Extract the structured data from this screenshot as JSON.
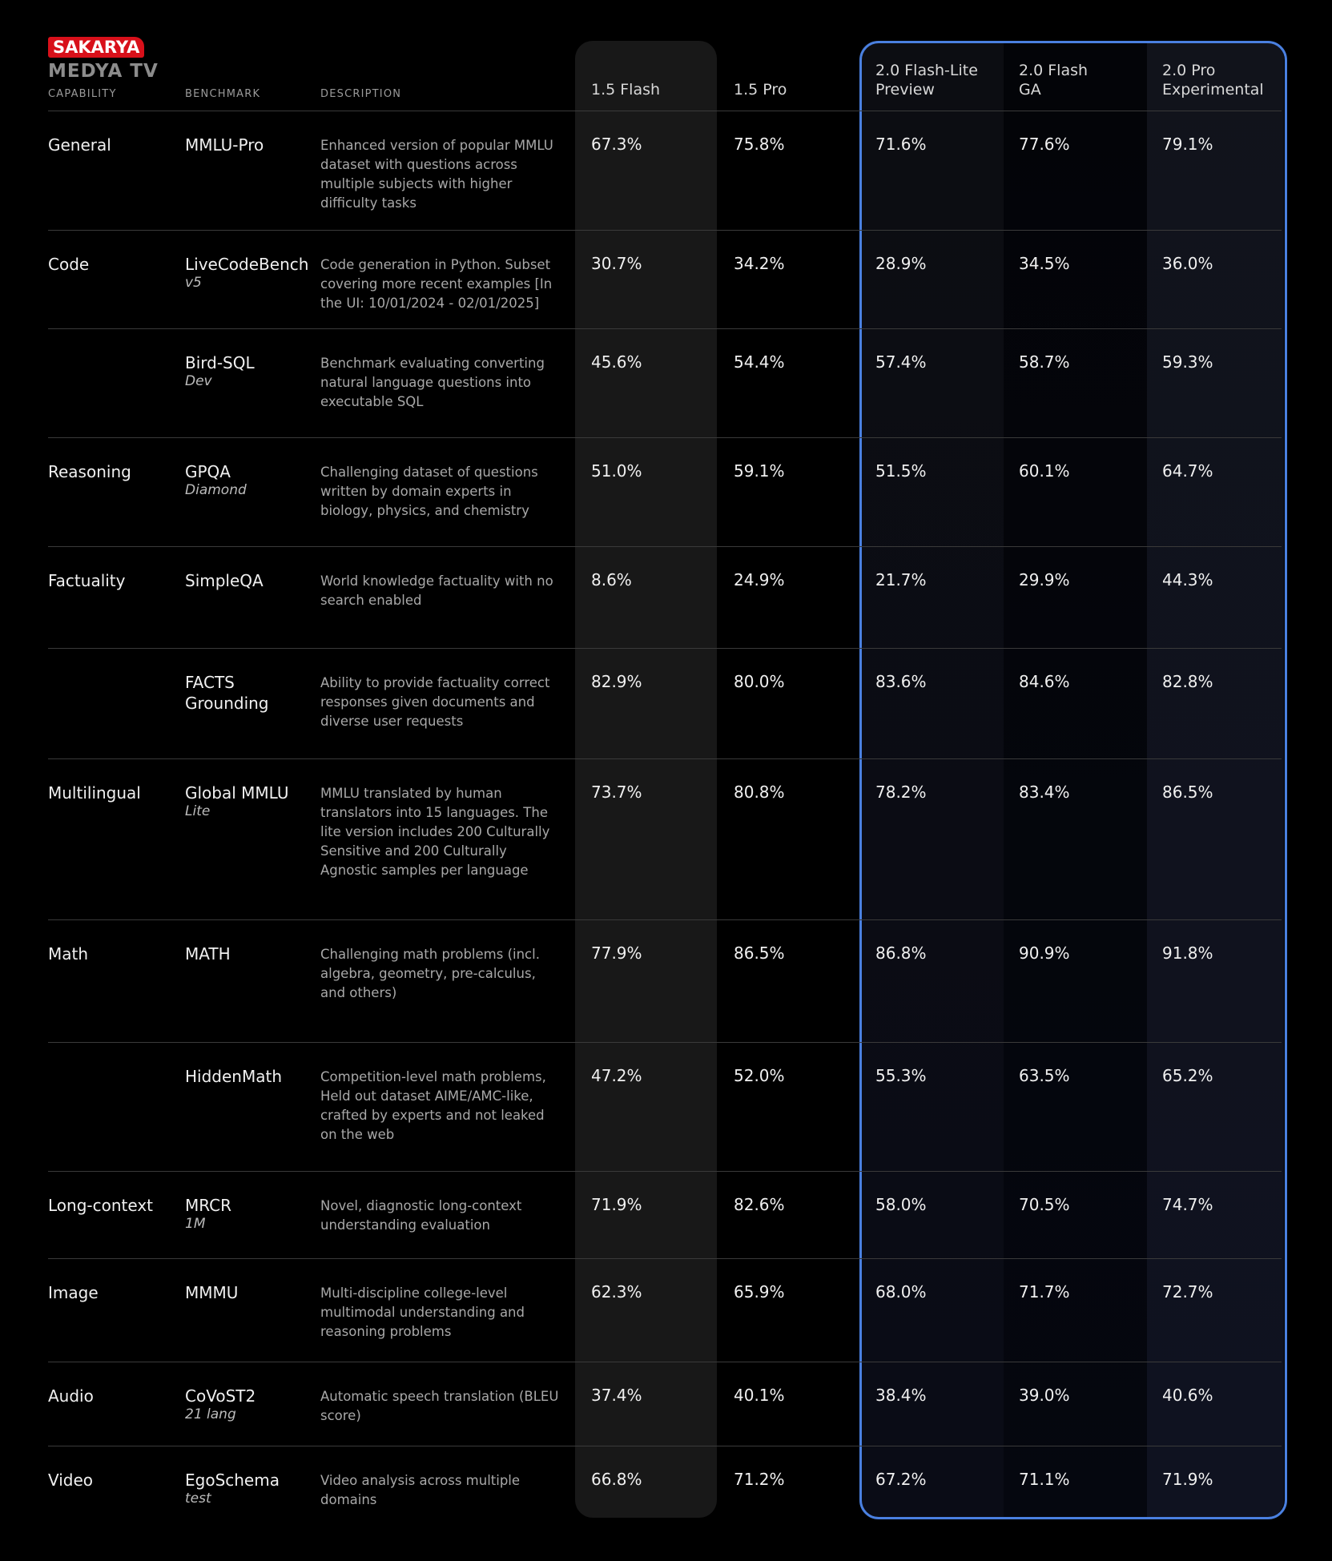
{
  "logo": {
    "brand": "SAKARYA",
    "sub": "MEDYA TV"
  },
  "table": {
    "headers": [
      "CAPABILITY",
      "BENCHMARK",
      "DESCRIPTION",
      "1.5 Flash",
      "1.5 Pro",
      "2.0 Flash-Lite\nPreview",
      "2.0 Flash\nGA",
      "2.0 Pro\nExperimental"
    ],
    "rows": [
      {
        "capability": "General",
        "benchmark": "MMLU-Pro",
        "description": "Enhanced version of popular MMLU dataset with questions across multiple subjects with higher difficulty tasks",
        "scores": [
          "67.3%",
          "75.8%",
          "71.6%",
          "77.6%",
          "79.1%"
        ]
      },
      {
        "capability": "Code",
        "benchmark": "LiveCodeBench",
        "variant": "v5",
        "description": "Code generation in Python. Subset covering more recent examples [In the UI: 10/01/2024 - 02/01/2025]",
        "scores": [
          "30.7%",
          "34.2%",
          "28.9%",
          "34.5%",
          "36.0%"
        ]
      },
      {
        "benchmark": "Bird-SQL",
        "variant": "Dev",
        "description": "Benchmark evaluating converting natural language questions into executable SQL",
        "scores": [
          "45.6%",
          "54.4%",
          "57.4%",
          "58.7%",
          "59.3%"
        ]
      },
      {
        "capability": "Reasoning",
        "benchmark": "GPQA",
        "variant": "Diamond",
        "description": "Challenging dataset of questions written by domain experts in biology, physics, and chemistry",
        "scores": [
          "51.0%",
          "59.1%",
          "51.5%",
          "60.1%",
          "64.7%"
        ]
      },
      {
        "capability": "Factuality",
        "benchmark": "SimpleQA",
        "description": "World knowledge factuality with no search enabled",
        "scores": [
          "8.6%",
          "24.9%",
          "21.7%",
          "29.9%",
          "44.3%"
        ]
      },
      {
        "benchmark": "FACTS\nGrounding",
        "description": "Ability to provide factuality correct responses given documents and diverse user requests",
        "scores": [
          "82.9%",
          "80.0%",
          "83.6%",
          "84.6%",
          "82.8%"
        ]
      },
      {
        "capability": "Multilingual",
        "benchmark": "Global MMLU",
        "variant": "Lite",
        "description": "MMLU translated by human translators into 15 languages. The lite version includes 200 Culturally Sensitive and 200 Culturally Agnostic samples per language",
        "scores": [
          "73.7%",
          "80.8%",
          "78.2%",
          "83.4%",
          "86.5%"
        ]
      },
      {
        "capability": "Math",
        "benchmark": "MATH",
        "description": "Challenging math problems (incl. algebra, geometry, pre-calculus, and others)",
        "scores": [
          "77.9%",
          "86.5%",
          "86.8%",
          "90.9%",
          "91.8%"
        ]
      },
      {
        "benchmark": "HiddenMath",
        "description": "Competition-level math problems, Held out dataset AIME/AMC-like, crafted by experts and not leaked on the web",
        "scores": [
          "47.2%",
          "52.0%",
          "55.3%",
          "63.5%",
          "65.2%"
        ]
      },
      {
        "capability": "Long-context",
        "benchmark": "MRCR",
        "variant": "1M",
        "description": "Novel, diagnostic long-context understanding evaluation",
        "scores": [
          "71.9%",
          "82.6%",
          "58.0%",
          "70.5%",
          "74.7%"
        ]
      },
      {
        "capability": "Image",
        "benchmark": "MMMU",
        "description": "Multi-discipline college-level multimodal understanding and reasoning problems",
        "scores": [
          "62.3%",
          "65.9%",
          "68.0%",
          "71.7%",
          "72.7%"
        ]
      },
      {
        "capability": "Audio",
        "benchmark": "CoVoST2",
        "variant": "21 lang",
        "description": "Automatic speech translation (BLEU score)",
        "scores": [
          "37.4%",
          "40.1%",
          "38.4%",
          "39.0%",
          "40.6%"
        ]
      },
      {
        "capability": "Video",
        "benchmark": "EgoSchema",
        "variant": "test",
        "description": "Video analysis across multiple domains",
        "scores": [
          "66.8%",
          "71.2%",
          "67.2%",
          "71.1%",
          "71.9%"
        ]
      }
    ]
  }
}
